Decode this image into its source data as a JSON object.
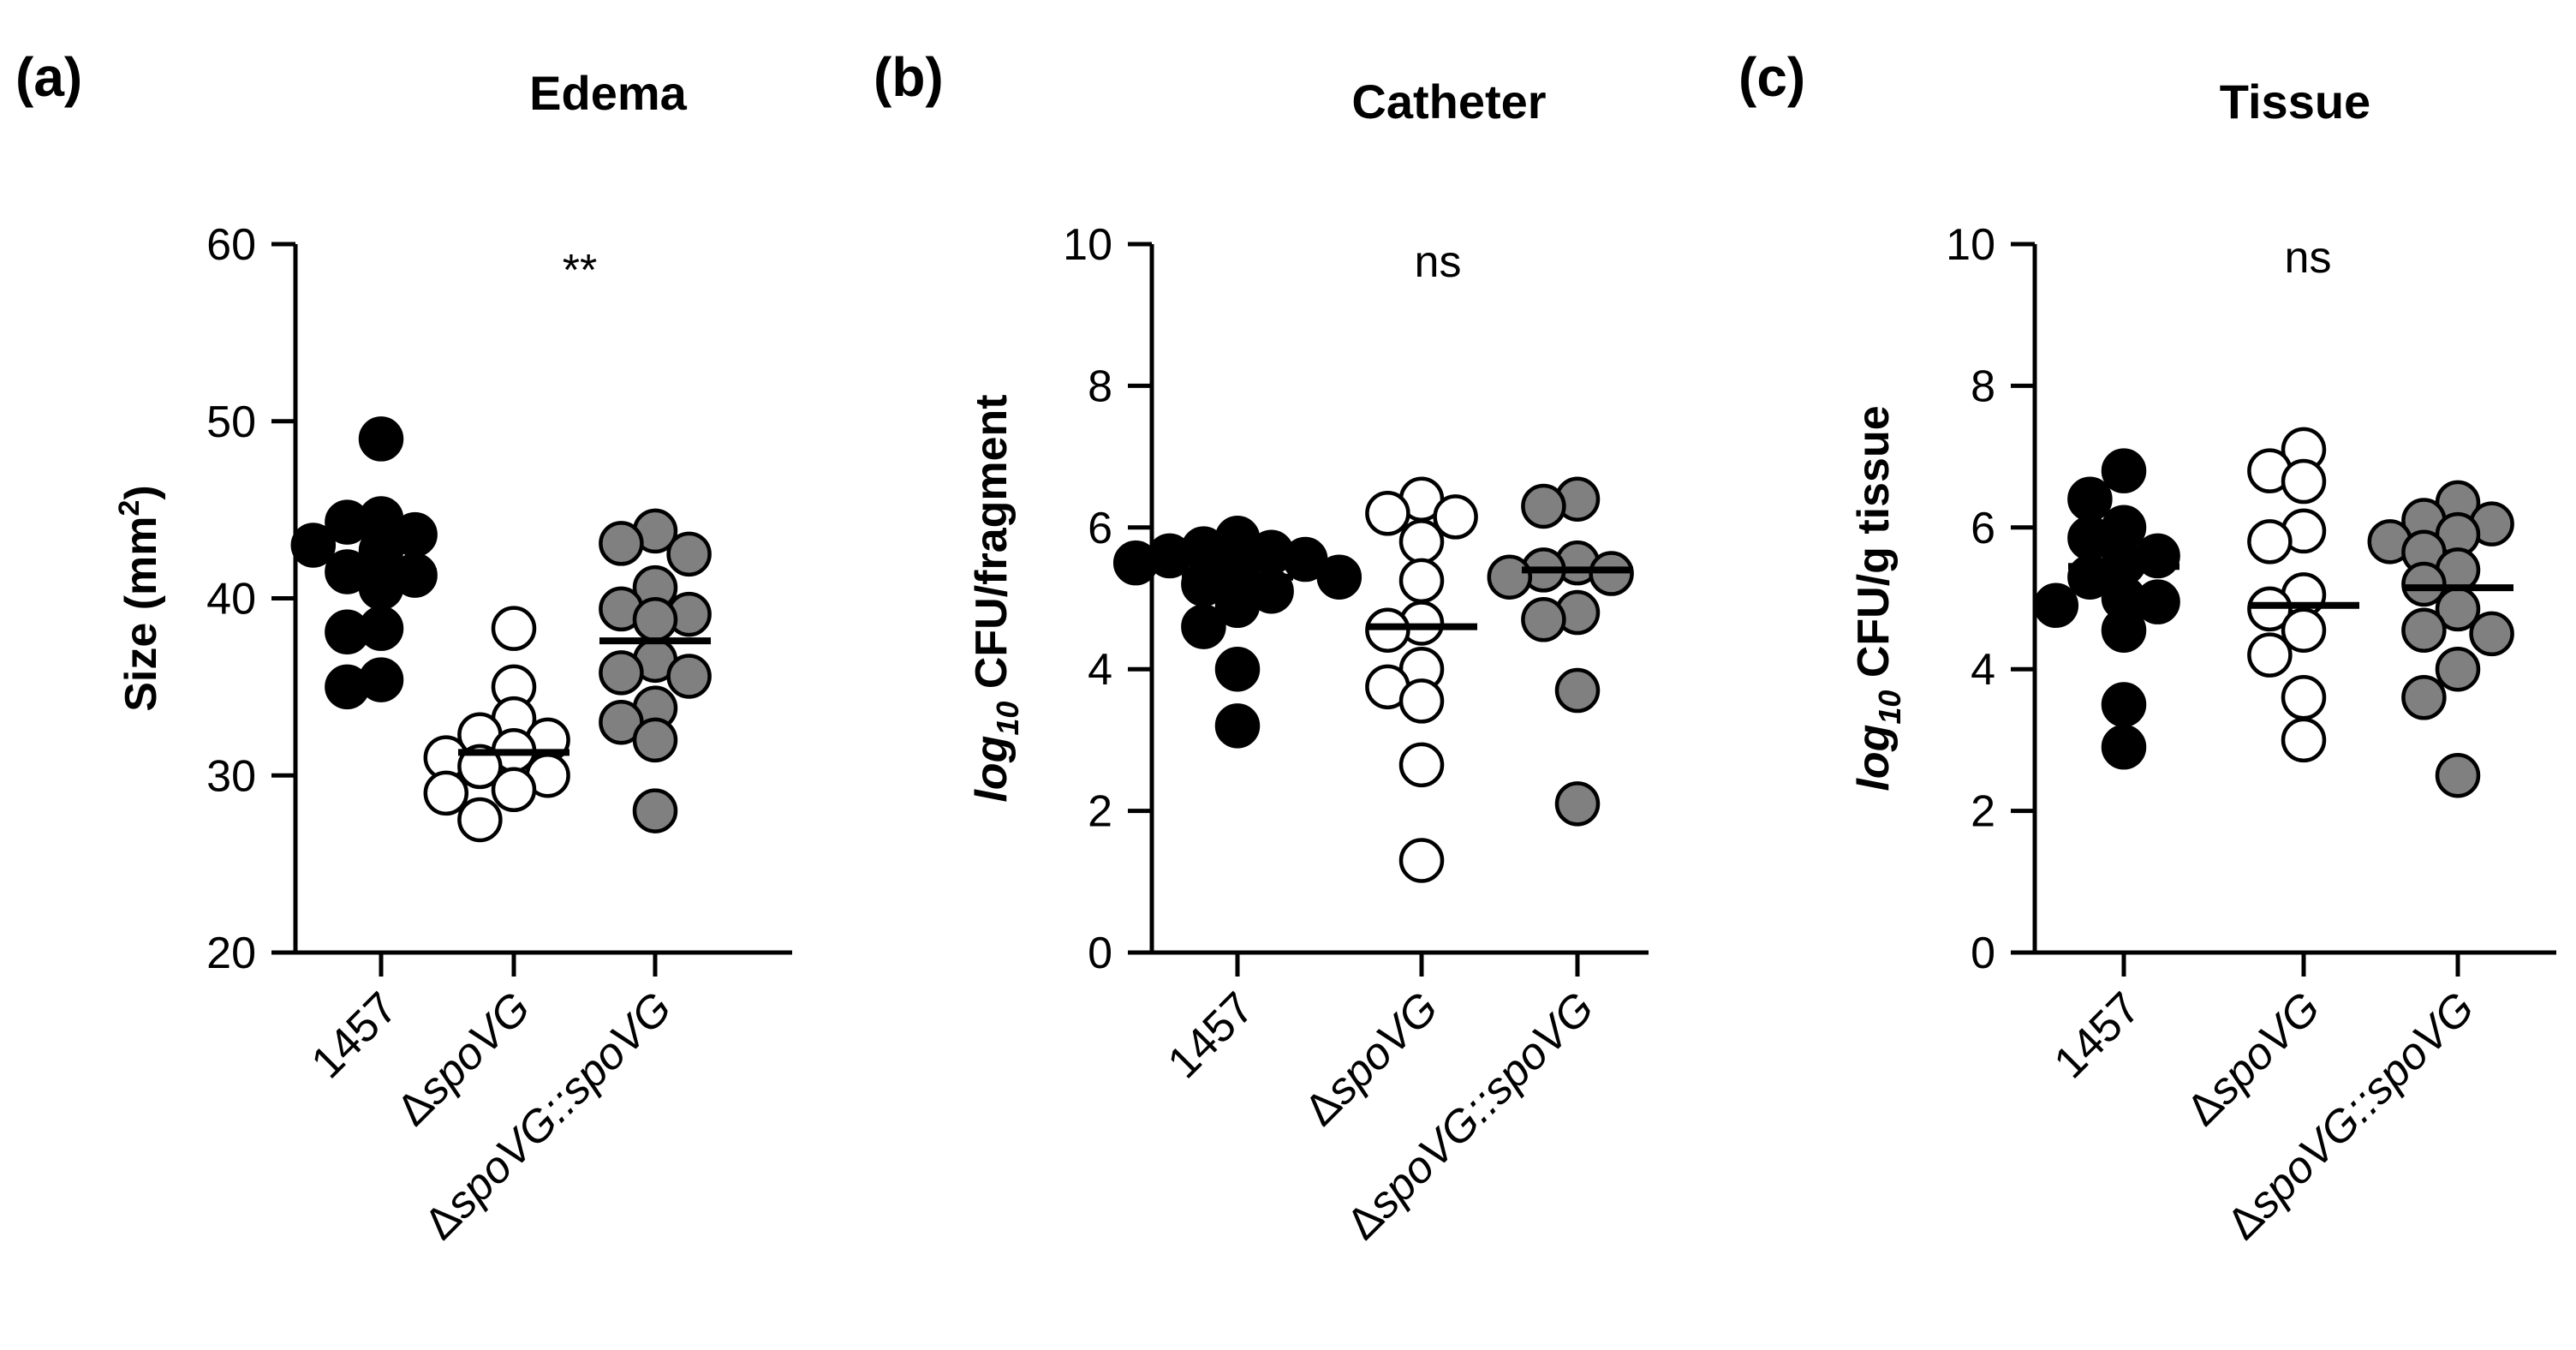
{
  "chart_data": [
    {
      "type": "scatter",
      "panel_label": "(a)",
      "title": "Edema",
      "ylabel": "Size (mm",
      "ylabel_sup": "2",
      "ylabel_close": ")",
      "ylim": [
        20,
        60
      ],
      "yticks": [
        20,
        30,
        40,
        50,
        60
      ],
      "significance": "**",
      "categories": [
        {
          "prefix": "",
          "name": "1457",
          "color": "#000000"
        },
        {
          "prefix": "Δ",
          "name": "spoVG",
          "color": "#ffffff"
        },
        {
          "prefix": "Δ",
          "name": "spoVG::spoVG",
          "color": "#808080"
        }
      ],
      "series": [
        {
          "name": "1457",
          "mean": 41.5,
          "values": [
            49,
            44.5,
            44.3,
            43.6,
            43.0,
            42.7,
            41.5,
            41.3,
            40.6,
            38.3,
            38.1,
            35.4,
            35.0
          ]
        },
        {
          "name": "ΔspoVG",
          "mean": 31.3,
          "values": [
            38.3,
            35.0,
            33.2,
            32.3,
            32.0,
            31.4,
            31.0,
            30.5,
            30.0,
            29.2,
            29.0,
            27.5
          ]
        },
        {
          "name": "ΔspoVG::spoVG",
          "mean": 37.6,
          "values": [
            43.8,
            43.1,
            42.5,
            40.6,
            39.4,
            39.1,
            38.8,
            36.5,
            35.8,
            35.6,
            33.8,
            33.0,
            32.0,
            28.0
          ]
        }
      ]
    },
    {
      "type": "scatter",
      "panel_label": "(b)",
      "title": "Catheter",
      "ylabel_sub_base": "log",
      "ylabel_sub": "10",
      "ylabel_rest": " CFU/fragment",
      "ylim": [
        0,
        10
      ],
      "yticks": [
        0,
        2,
        4,
        6,
        8,
        10
      ],
      "significance": "ns",
      "categories": [
        {
          "prefix": "",
          "name": "1457",
          "color": "#000000"
        },
        {
          "prefix": "Δ",
          "name": "spoVG",
          "color": "#ffffff"
        },
        {
          "prefix": "Δ",
          "name": "spoVG::spoVG",
          "color": "#808080"
        }
      ],
      "series": [
        {
          "name": "1457",
          "mean": 5.3,
          "values": [
            5.85,
            5.7,
            5.65,
            5.6,
            5.55,
            5.5,
            5.4,
            5.3,
            5.2,
            5.1,
            4.9,
            4.6,
            4.0,
            3.2
          ]
        },
        {
          "name": "ΔspoVG",
          "mean": 4.6,
          "values": [
            6.4,
            6.2,
            6.15,
            5.8,
            5.25,
            4.65,
            4.55,
            4.0,
            3.75,
            3.55,
            2.65,
            1.3
          ]
        },
        {
          "name": "ΔspoVG::spoVG",
          "mean": 5.4,
          "values": [
            6.4,
            6.3,
            5.5,
            5.4,
            5.35,
            5.3,
            4.8,
            4.7,
            3.7,
            2.1
          ]
        }
      ]
    },
    {
      "type": "scatter",
      "panel_label": "(c)",
      "title": "Tissue",
      "ylabel_sub_base": "log",
      "ylabel_sub": "10",
      "ylabel_rest": " CFU/g tissue",
      "ylim": [
        0,
        10
      ],
      "yticks": [
        0,
        2,
        4,
        6,
        8,
        10
      ],
      "significance": "ns",
      "categories": [
        {
          "prefix": "",
          "name": "1457",
          "color": "#000000"
        },
        {
          "prefix": "Δ",
          "name": "spoVG",
          "color": "#ffffff"
        },
        {
          "prefix": "Δ",
          "name": "spoVG::spoVG",
          "color": "#808080"
        }
      ],
      "series": [
        {
          "name": "1457",
          "mean": 5.45,
          "values": [
            6.8,
            6.4,
            6.0,
            5.85,
            5.6,
            5.5,
            5.3,
            5.0,
            4.95,
            4.9,
            4.55,
            3.5,
            2.9
          ]
        },
        {
          "name": "ΔspoVG",
          "mean": 4.9,
          "values": [
            7.1,
            6.8,
            6.65,
            5.95,
            5.8,
            5.05,
            4.85,
            4.55,
            4.2,
            3.6,
            3.0
          ]
        },
        {
          "name": "ΔspoVG::spoVG",
          "mean": 5.15,
          "values": [
            6.35,
            6.1,
            6.05,
            5.9,
            5.8,
            5.65,
            5.4,
            5.2,
            4.85,
            4.55,
            4.5,
            4.0,
            3.6,
            2.5
          ]
        }
      ]
    }
  ]
}
